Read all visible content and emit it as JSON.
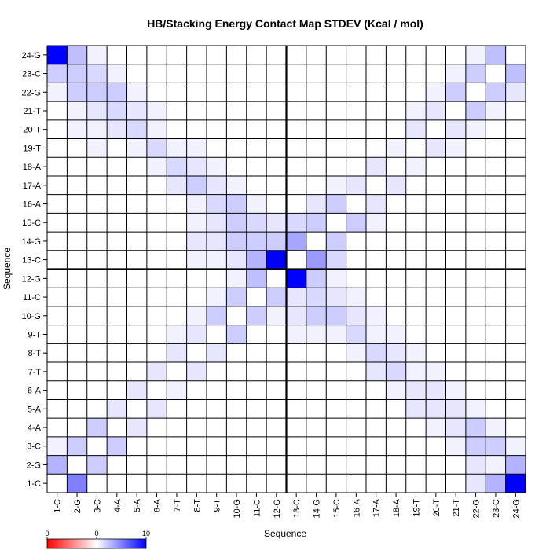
{
  "chart_data": {
    "type": "heatmap",
    "title": "HB/Stacking Energy Contact Map STDEV (Kcal / mol)",
    "xlabel": "Sequence",
    "ylabel": "Sequence",
    "labels": [
      "1-C",
      "2-G",
      "3-C",
      "4-A",
      "5-A",
      "6-A",
      "7-T",
      "8-T",
      "9-T",
      "10-G",
      "11-C",
      "12-G",
      "13-C",
      "14-G",
      "15-C",
      "16-A",
      "17-A",
      "18-A",
      "19-T",
      "20-T",
      "21-T",
      "22-G",
      "23-C",
      "24-G"
    ],
    "x_order": "left-to-right",
    "y_order": "bottom-to-top",
    "cells": [
      [
        0,
        5,
        0,
        0,
        0,
        0,
        0,
        0,
        0,
        0,
        0,
        0,
        0,
        0,
        0,
        0,
        0,
        0,
        0,
        0,
        0,
        1,
        3,
        10
      ],
      [
        3,
        0,
        2,
        0,
        0,
        0,
        0,
        0,
        0,
        0,
        0,
        0,
        0,
        0,
        0,
        0,
        0,
        0,
        0,
        0,
        0,
        1,
        0.5,
        3
      ],
      [
        0.5,
        2,
        0,
        2,
        0,
        0,
        0,
        0,
        0,
        0,
        0,
        0,
        0,
        0,
        0,
        0,
        0,
        0,
        0,
        0,
        0.5,
        2,
        2,
        0.5
      ],
      [
        0,
        0,
        2,
        0,
        1,
        0,
        0,
        0,
        0,
        0,
        0,
        0,
        0,
        0,
        0,
        0,
        0,
        0,
        0,
        0.5,
        1,
        2,
        0.5,
        0
      ],
      [
        0,
        0,
        0,
        1,
        0,
        1,
        0,
        0,
        0,
        0,
        0,
        0,
        0,
        0,
        0,
        0,
        0,
        0,
        1,
        1,
        1,
        0.5,
        0,
        0
      ],
      [
        0,
        0,
        0,
        0,
        1,
        0,
        0.5,
        0,
        0,
        0,
        0,
        0,
        0,
        0,
        0,
        0,
        0,
        0.5,
        1,
        1,
        0.5,
        0,
        0,
        0
      ],
      [
        0,
        0,
        0,
        0,
        0,
        1,
        0,
        1,
        0,
        0,
        0,
        0,
        0,
        0,
        0,
        0,
        1,
        1.5,
        0.5,
        0.5,
        0,
        0,
        0,
        0
      ],
      [
        0,
        0,
        0,
        0,
        0,
        0,
        1,
        0,
        1,
        0,
        0,
        0,
        0,
        0,
        0,
        0.5,
        1.5,
        1,
        0.5,
        0,
        0,
        0,
        0,
        0
      ],
      [
        0,
        0,
        0,
        0,
        0,
        0,
        0.5,
        1,
        0,
        2,
        0,
        0,
        0.5,
        0.5,
        0.5,
        1.5,
        0.5,
        0.5,
        0,
        0,
        0,
        0,
        0,
        0
      ],
      [
        0,
        0,
        0,
        0,
        0,
        0,
        0,
        0.5,
        2,
        0,
        2,
        0.5,
        1,
        2,
        2,
        1,
        0.5,
        0,
        0,
        0,
        0,
        0,
        0,
        0
      ],
      [
        0,
        0,
        0,
        0,
        0,
        0,
        0,
        0,
        0.5,
        2,
        0,
        2,
        1,
        1.5,
        1,
        0.5,
        0,
        0,
        0,
        0,
        0,
        0,
        0,
        0
      ],
      [
        0,
        0,
        0,
        0,
        0,
        0,
        0,
        0,
        0,
        0.5,
        2.5,
        0,
        10,
        2,
        0.5,
        0,
        0,
        0,
        0,
        0,
        0,
        0,
        0,
        0
      ],
      [
        0,
        0,
        0,
        0,
        0,
        0,
        0,
        0.5,
        0.5,
        1,
        3,
        10,
        0,
        4,
        1.5,
        0,
        0,
        0,
        0,
        0,
        0,
        0,
        0,
        0
      ],
      [
        0,
        0,
        0,
        0,
        0,
        0,
        0,
        1,
        1,
        2,
        2,
        2,
        3.5,
        0,
        2,
        0,
        0,
        0,
        0,
        0,
        0,
        0,
        0,
        0
      ],
      [
        0,
        0,
        0,
        0,
        0,
        0,
        0,
        0.5,
        1,
        2,
        1.5,
        1,
        1.5,
        2,
        0,
        2,
        0.5,
        0,
        0,
        0,
        0,
        0,
        0,
        0
      ],
      [
        0,
        0,
        0,
        0,
        0,
        0,
        0,
        0.5,
        1.5,
        2,
        0.5,
        0,
        0,
        1,
        2,
        0,
        1,
        0,
        0,
        0,
        0,
        0,
        0,
        0
      ],
      [
        0,
        0,
        0,
        0,
        0,
        0,
        1,
        2,
        1,
        0.5,
        0,
        0,
        0,
        0,
        0.5,
        1,
        0,
        1,
        0,
        0,
        0,
        0,
        0,
        0
      ],
      [
        0,
        0,
        0,
        0,
        0,
        0.5,
        1.5,
        1,
        0.5,
        0,
        0,
        0,
        0,
        0,
        0,
        0,
        1,
        0,
        0.5,
        0,
        0,
        0,
        0,
        0
      ],
      [
        0,
        0,
        0.5,
        0,
        0.5,
        1.5,
        0.5,
        0.5,
        0,
        0,
        0,
        0,
        0,
        0,
        0,
        0,
        0,
        0.5,
        0,
        1,
        0.5,
        0,
        0,
        0
      ],
      [
        0,
        0.5,
        0.5,
        1,
        1.5,
        0.5,
        0,
        0,
        0,
        0,
        0,
        0,
        0,
        0,
        0,
        0,
        0,
        0,
        1,
        0,
        1,
        0.5,
        0,
        0
      ],
      [
        0,
        0.5,
        1,
        1.5,
        1,
        0.5,
        0,
        0,
        0,
        0,
        0,
        0,
        0,
        0,
        0,
        0,
        0,
        0,
        0.5,
        1,
        0,
        2,
        0.5,
        0
      ],
      [
        0.5,
        2,
        2,
        2,
        0.5,
        0,
        0,
        0,
        0,
        0,
        0,
        0,
        0,
        0,
        0,
        0,
        0,
        0,
        0,
        0.5,
        2,
        0,
        2,
        1
      ],
      [
        2,
        2,
        1.5,
        0.5,
        0,
        0,
        0,
        0,
        0,
        0,
        0,
        0,
        0,
        0,
        0,
        0,
        0,
        0,
        0,
        0,
        0.5,
        2,
        0,
        2.5
      ],
      [
        10,
        2.5,
        0.5,
        0,
        0,
        0,
        0,
        0,
        0,
        0,
        0,
        0,
        0,
        0,
        0,
        0,
        0,
        0,
        0,
        0,
        0,
        0.5,
        2.5,
        0
      ]
    ],
    "value_range": [
      0,
      10
    ],
    "colorbar": {
      "min_label": "0",
      "mid_label": "0",
      "max_label": "10",
      "colors": [
        "#ff0000",
        "#ffffff",
        "#0000ff"
      ]
    },
    "divider_after_label": "12-G",
    "grid": true,
    "legend": "bottom-left"
  }
}
